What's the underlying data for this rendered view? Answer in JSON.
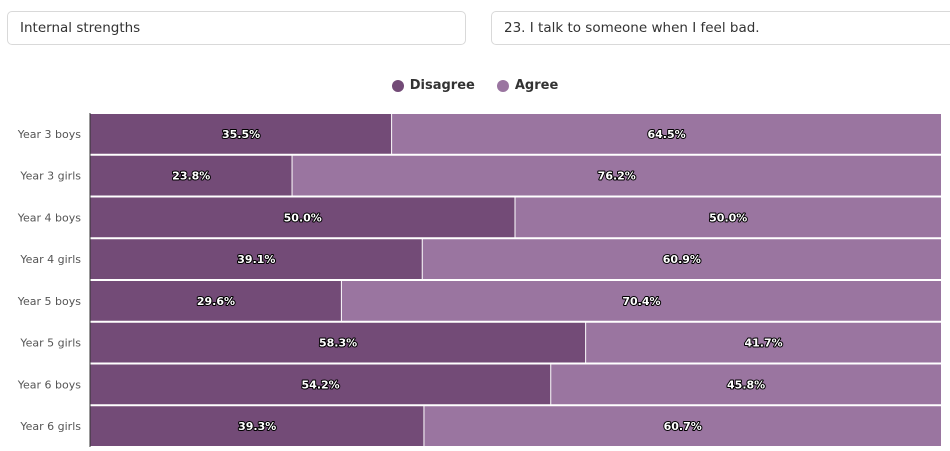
{
  "filters": {
    "category": "Internal strengths",
    "question": "23. I talk to someone when I feel bad."
  },
  "colors": {
    "disagree": "#734b77",
    "agree": "#9a75a0",
    "axis": "#333333"
  },
  "chart_data": {
    "type": "bar",
    "orientation": "horizontal",
    "stacked": "percent",
    "categories": [
      "Year 3 boys",
      "Year 3 girls",
      "Year 4 boys",
      "Year 4 girls",
      "Year 5 boys",
      "Year 5 girls",
      "Year 6 boys",
      "Year 6 girls"
    ],
    "series": [
      {
        "name": "Disagree",
        "values": [
          35.5,
          23.8,
          50.0,
          39.1,
          29.6,
          58.3,
          54.2,
          39.3
        ]
      },
      {
        "name": "Agree",
        "values": [
          64.5,
          76.2,
          50.0,
          60.9,
          70.4,
          41.7,
          45.8,
          60.7
        ]
      }
    ],
    "value_suffix": "%",
    "xlim": [
      0,
      100
    ],
    "legend_position": "top-center",
    "grid": false
  }
}
